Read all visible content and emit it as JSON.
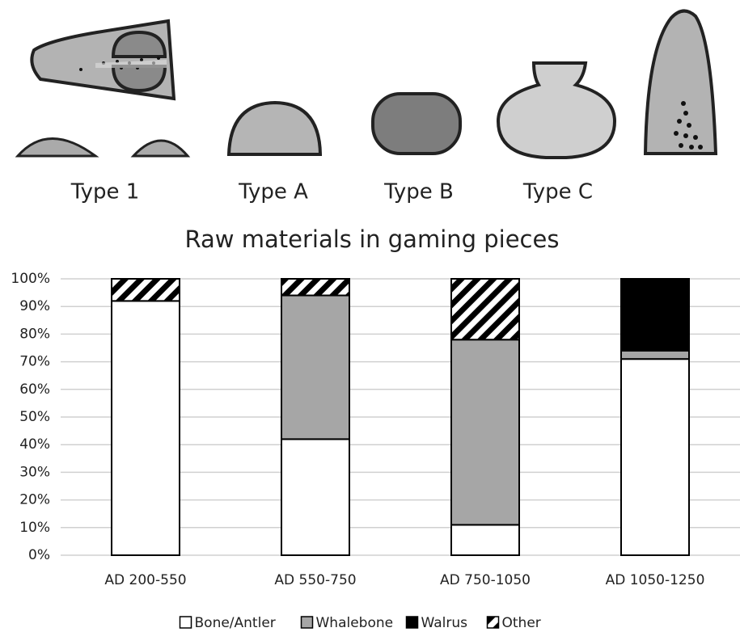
{
  "chart_data": {
    "type": "stacked_bar",
    "annotations": [
      "Type 1",
      "Type A",
      "Type B",
      "Type C"
    ],
    "title": "Raw materials  in gaming pieces",
    "categories": [
      "AD 200-550",
      "AD 550-750",
      "AD 750-1050",
      "AD 1050-1250"
    ],
    "series": [
      {
        "name": "Bone/Antler",
        "color": "#ffffff",
        "values": [
          92,
          42,
          11,
          71
        ]
      },
      {
        "name": "Whalebone",
        "color": "#a6a6a6",
        "values": [
          0,
          52,
          67,
          3
        ]
      },
      {
        "name": "Walrus",
        "color": "#000000",
        "values": [
          0,
          0,
          0,
          26
        ]
      },
      {
        "name": "Other",
        "color": "#000000",
        "pattern": "diagonal-hatch",
        "values": [
          8,
          6,
          22,
          0
        ]
      }
    ],
    "ylim": [
      0,
      100
    ],
    "yticks": [
      {
        "value": 0,
        "label": "0%"
      },
      {
        "value": 10,
        "label": "10%"
      },
      {
        "value": 20,
        "label": "20%"
      },
      {
        "value": 30,
        "label": "30%"
      },
      {
        "value": 40,
        "label": "40%"
      },
      {
        "value": 50,
        "label": "50%"
      },
      {
        "value": 60,
        "label": "60%"
      },
      {
        "value": 70,
        "label": "70%"
      },
      {
        "value": 80,
        "label": "80%"
      },
      {
        "value": 90,
        "label": "90%"
      },
      {
        "value": 100,
        "label": "100%"
      }
    ],
    "grid": true,
    "legend": "bottom"
  }
}
